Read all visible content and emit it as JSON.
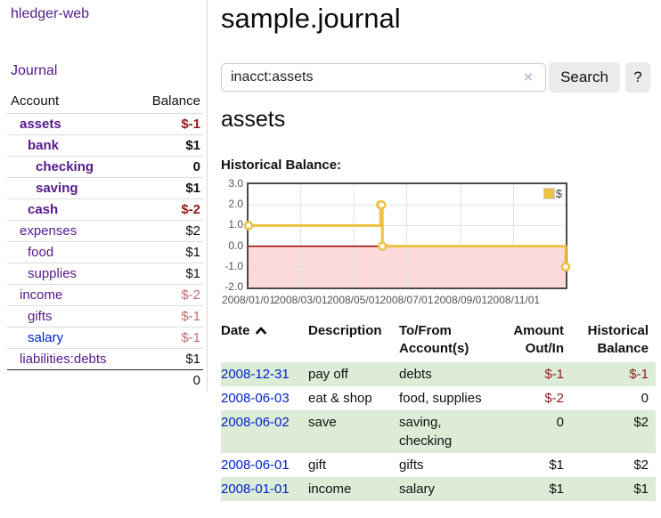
{
  "colors": {
    "accent_purple": "#551a8b",
    "link_blue": "#0022cc",
    "negative_red": "#921919",
    "negative_faded_red": "#c26a6a",
    "row_green": "#dcecd7",
    "chart_line_gold": "#edc240",
    "chart_negative_fill": "#fcdada",
    "chart_zero_line": "#990000"
  },
  "sidebar": {
    "app_title": "hledger-web",
    "journal_label": "Journal",
    "table": {
      "account_header": "Account",
      "balance_header": "Balance",
      "rows": [
        {
          "name": "assets",
          "balance": "$-1"
        },
        {
          "name": "bank",
          "balance": "$1"
        },
        {
          "name": "checking",
          "balance": "0"
        },
        {
          "name": "saving",
          "balance": "$1"
        },
        {
          "name": "cash",
          "balance": "$-2"
        },
        {
          "name": "expenses",
          "balance": "$2"
        },
        {
          "name": "food",
          "balance": "$1"
        },
        {
          "name": "supplies",
          "balance": "$1"
        },
        {
          "name": "income",
          "balance": "$-2"
        },
        {
          "name": "gifts",
          "balance": "$-1"
        },
        {
          "name": "salary",
          "balance": "$-1"
        },
        {
          "name": "liabilities:debts",
          "balance": "$1"
        }
      ],
      "total": "0"
    }
  },
  "main": {
    "title": "sample.journal",
    "search": {
      "value": "inacct:assets",
      "clear_icon": "×",
      "button_label": "Search",
      "help_label": "?"
    },
    "account_heading": "assets",
    "chart_label": "Historical Balance:"
  },
  "chart_data": {
    "type": "line",
    "title": "Historical Balance:",
    "step": true,
    "x_range": [
      "2008-01-01",
      "2008-12-31"
    ],
    "x_ticks": [
      "2008/01/01",
      "2008/03/01",
      "2008/05/01",
      "2008/07/01",
      "2008/09/01",
      "2008/11/01"
    ],
    "y_ticks": [
      3.0,
      2.0,
      1.0,
      0.0,
      -1.0,
      -2.0
    ],
    "ylim": [
      -2,
      3
    ],
    "series": [
      {
        "name": "$",
        "color": "#edc240",
        "points": [
          [
            "2008-01-01",
            1
          ],
          [
            "2008-06-01",
            2
          ],
          [
            "2008-06-02",
            2
          ],
          [
            "2008-06-03",
            0
          ],
          [
            "2008-12-31",
            -1
          ]
        ]
      }
    ],
    "negative_region_color": "#fcdada",
    "zero_line_color": "#990000",
    "legend": {
      "label": "$",
      "position": "top-right"
    }
  },
  "register": {
    "headers": {
      "date": "Date",
      "description": "Description",
      "accounts": "To/From Account(s)",
      "amount": "Amount Out/In",
      "balance": "Historical Balance"
    },
    "rows": [
      {
        "date": "2008-12-31",
        "description": "pay off",
        "accounts": "debts",
        "amount": "$-1",
        "balance": "$-1"
      },
      {
        "date": "2008-06-03",
        "description": "eat & shop",
        "accounts": "food, supplies",
        "amount": "$-2",
        "balance": "0"
      },
      {
        "date": "2008-06-02",
        "description": "save",
        "accounts": "saving, checking",
        "amount": "0",
        "balance": "$2"
      },
      {
        "date": "2008-06-01",
        "description": "gift",
        "accounts": "gifts",
        "amount": "$1",
        "balance": "$2"
      },
      {
        "date": "2008-01-01",
        "description": "income",
        "accounts": "salary",
        "amount": "$1",
        "balance": "$1"
      }
    ]
  }
}
